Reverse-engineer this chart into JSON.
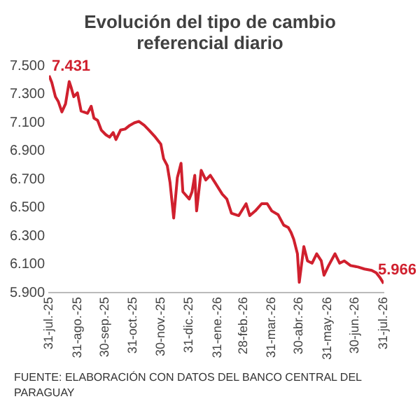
{
  "chart_data": {
    "type": "line",
    "title": "Evolución del tipo de cambio referencial diario",
    "x": [
      "2025-07-31",
      "2025-08-03",
      "2025-08-07",
      "2025-08-10",
      "2025-08-14",
      "2025-08-18",
      "2025-08-22",
      "2025-08-24",
      "2025-08-27",
      "2025-08-31",
      "2025-09-04",
      "2025-09-11",
      "2025-09-15",
      "2025-09-18",
      "2025-09-22",
      "2025-09-26",
      "2025-10-01",
      "2025-10-05",
      "2025-10-09",
      "2025-10-12",
      "2025-10-17",
      "2025-10-22",
      "2025-10-27",
      "2025-11-01",
      "2025-11-06",
      "2025-11-12",
      "2025-11-17",
      "2025-11-24",
      "2025-11-30",
      "2025-12-03",
      "2025-12-07",
      "2025-12-10",
      "2025-12-14",
      "2025-12-18",
      "2025-12-22",
      "2025-12-24",
      "2025-12-31",
      "2026-01-03",
      "2026-01-06",
      "2026-01-08",
      "2026-01-13",
      "2026-01-18",
      "2026-01-23",
      "2026-01-28",
      "2026-02-05",
      "2026-02-10",
      "2026-02-15",
      "2026-02-23",
      "2026-03-03",
      "2026-03-07",
      "2026-03-13",
      "2026-03-20",
      "2026-03-26",
      "2026-03-31",
      "2026-04-07",
      "2026-04-13",
      "2026-04-18",
      "2026-04-21",
      "2026-04-24",
      "2026-04-28",
      "2026-04-30",
      "2026-05-02",
      "2026-05-05",
      "2026-05-09",
      "2026-05-14",
      "2026-05-19",
      "2026-05-24",
      "2026-05-27",
      "2026-06-01",
      "2026-06-08",
      "2026-06-13",
      "2026-06-18",
      "2026-06-25",
      "2026-07-03",
      "2026-07-10",
      "2026-07-18",
      "2026-07-23",
      "2026-07-27",
      "2026-07-31"
    ],
    "series": [
      {
        "color": "#d0202e",
        "values": [
          7431,
          7383,
          7282,
          7250,
          7175,
          7232,
          7389,
          7350,
          7282,
          7309,
          7181,
          7165,
          7215,
          7131,
          7115,
          7047,
          7014,
          6997,
          7030,
          6980,
          7047,
          7054,
          7080,
          7098,
          7108,
          7080,
          7047,
          6997,
          6947,
          6846,
          6796,
          6678,
          6427,
          6712,
          6813,
          6612,
          6561,
          6612,
          6728,
          6477,
          6763,
          6695,
          6728,
          6678,
          6595,
          6561,
          6461,
          6444,
          6528,
          6444,
          6477,
          6528,
          6528,
          6477,
          6450,
          6377,
          6360,
          6326,
          6276,
          6175,
          5974,
          6075,
          6226,
          6125,
          6109,
          6175,
          6125,
          6024,
          6092,
          6175,
          6109,
          6125,
          6092,
          6082,
          6068,
          6058,
          6041,
          6008,
          5966
        ]
      }
    ],
    "xlim": [
      "2025-07-31",
      "2026-07-31"
    ],
    "xticks": [
      {
        "value": "2025-07-31",
        "label": "31-jul.-25"
      },
      {
        "value": "2025-08-31",
        "label": "31-ago.-25"
      },
      {
        "value": "2025-09-30",
        "label": "30-sep.-25"
      },
      {
        "value": "2025-10-31",
        "label": "31-oct.-25"
      },
      {
        "value": "2025-11-30",
        "label": "30-nov.-25"
      },
      {
        "value": "2025-12-31",
        "label": "31-dic.-25"
      },
      {
        "value": "2026-01-31",
        "label": "31-ene.-26"
      },
      {
        "value": "2026-02-28",
        "label": "28-feb.-26"
      },
      {
        "value": "2026-03-31",
        "label": "31-mar.-26"
      },
      {
        "value": "2026-04-30",
        "label": "30-abr.-26"
      },
      {
        "value": "2026-05-31",
        "label": "31-may.-26"
      },
      {
        "value": "2026-06-30",
        "label": "30-jun.-26"
      },
      {
        "value": "2026-07-31",
        "label": "31-jul.-26"
      }
    ],
    "ylim": [
      5900,
      7500
    ],
    "yticks": [
      {
        "value": 5900,
        "label": "5.900"
      },
      {
        "value": 6100,
        "label": "6.100"
      },
      {
        "value": 6300,
        "label": "6.300"
      },
      {
        "value": 6500,
        "label": "6.500"
      },
      {
        "value": 6700,
        "label": "6.700"
      },
      {
        "value": 6900,
        "label": "6.900"
      },
      {
        "value": 7100,
        "label": "7.100"
      },
      {
        "value": 7300,
        "label": "7.300"
      },
      {
        "value": 7500,
        "label": "7.500"
      }
    ],
    "grid": false,
    "legend": false,
    "marker": "none",
    "line_style": "solid",
    "annotations": [
      {
        "text": "7.431",
        "x": "2025-07-31",
        "y": 7431
      },
      {
        "text": "5.966",
        "x": "2026-07-31",
        "y": 5966
      },
      "FUENTE: ELABORACIÓN CON DATOS DEL BANCO CENTRAL DEL PARAGUAY"
    ]
  }
}
